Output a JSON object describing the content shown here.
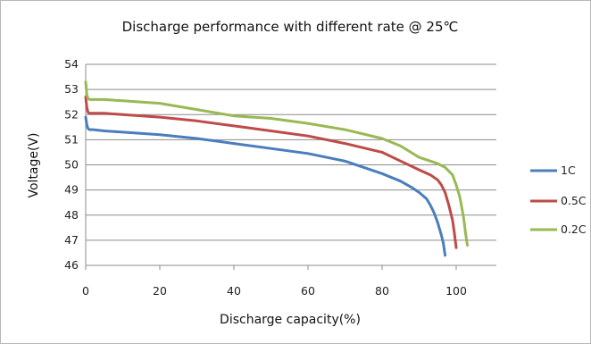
{
  "chart_data": {
    "type": "line",
    "title": "Discharge performance with different rate @ 25℃",
    "xlabel": "Discharge capacity(%)",
    "ylabel": "Voltage(V)",
    "xlim": [
      0,
      100
    ],
    "ylim": [
      46,
      54
    ],
    "xticks": [
      "0",
      "20",
      "40",
      "60",
      "80",
      "100"
    ],
    "yticks": [
      "46",
      "47",
      "48",
      "49",
      "50",
      "51",
      "52",
      "53",
      "54"
    ],
    "grid": "horizontal",
    "legend_position": "right",
    "series": [
      {
        "name": "1C",
        "color": "#4a7ebb",
        "x": [
          0,
          0.3,
          0.6,
          1,
          2,
          5,
          10,
          20,
          30,
          40,
          50,
          60,
          70,
          80,
          85,
          88,
          90,
          92,
          93,
          94,
          95,
          96,
          96.5,
          97
        ],
        "y": [
          51.9,
          51.6,
          51.45,
          51.4,
          51.4,
          51.35,
          51.3,
          51.2,
          51.05,
          50.85,
          50.65,
          50.45,
          50.15,
          49.65,
          49.35,
          49.1,
          48.9,
          48.65,
          48.4,
          48.1,
          47.7,
          47.2,
          46.9,
          46.4
        ]
      },
      {
        "name": "0.5C",
        "color": "#be4b48",
        "x": [
          0,
          0.3,
          0.6,
          1,
          2,
          5,
          10,
          20,
          30,
          40,
          50,
          60,
          70,
          80,
          85,
          90,
          93,
          95,
          96,
          97,
          98,
          99,
          99.5,
          100
        ],
        "y": [
          52.7,
          52.3,
          52.1,
          52.05,
          52.05,
          52.05,
          52.0,
          51.9,
          51.75,
          51.55,
          51.35,
          51.15,
          50.85,
          50.5,
          50.15,
          49.8,
          49.6,
          49.4,
          49.2,
          48.9,
          48.4,
          47.8,
          47.3,
          46.7
        ]
      },
      {
        "name": "0.2C",
        "color": "#98b954",
        "x": [
          0,
          0.3,
          0.6,
          1,
          2,
          5,
          10,
          20,
          30,
          40,
          50,
          60,
          70,
          80,
          85,
          90,
          95,
          97,
          99,
          100,
          101,
          102,
          102.5,
          103
        ],
        "y": [
          53.3,
          52.8,
          52.65,
          52.6,
          52.6,
          52.6,
          52.55,
          52.45,
          52.2,
          51.95,
          51.85,
          51.65,
          51.4,
          51.05,
          50.75,
          50.3,
          50.05,
          49.9,
          49.6,
          49.2,
          48.7,
          47.9,
          47.3,
          46.8
        ]
      }
    ]
  }
}
